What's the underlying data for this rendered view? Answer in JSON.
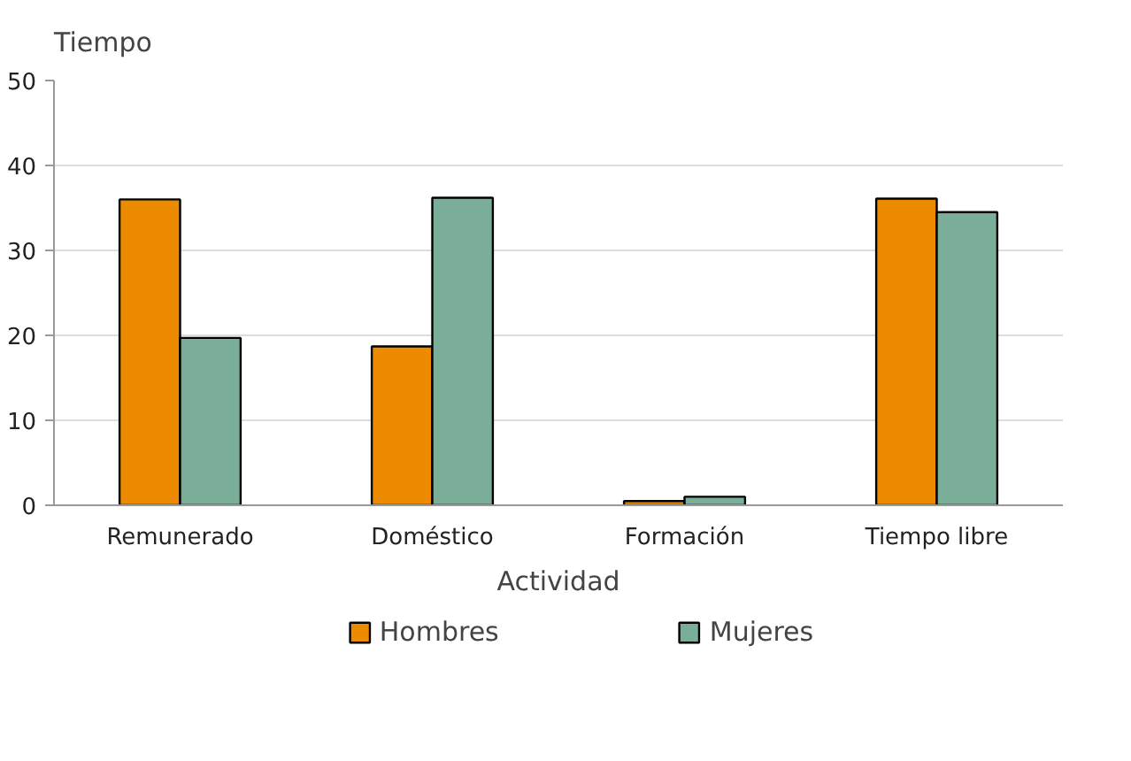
{
  "chart_data": {
    "type": "bar",
    "ylabel": "Tiempo",
    "xlabel": "Actividad",
    "categories": [
      "Remunerado",
      "Doméstico",
      "Formación",
      "Tiempo libre"
    ],
    "series": [
      {
        "name": "Hombres",
        "color": "#ed8b00",
        "values": [
          36.0,
          18.7,
          0.5,
          36.1
        ]
      },
      {
        "name": "Mujeres",
        "color": "#7aae98",
        "values": [
          19.7,
          36.2,
          1.0,
          34.5
        ]
      }
    ],
    "ylim": [
      0,
      50
    ],
    "yticks": [
      0,
      10,
      20,
      30,
      40,
      50
    ],
    "grid": "y",
    "legend": "bottom"
  }
}
